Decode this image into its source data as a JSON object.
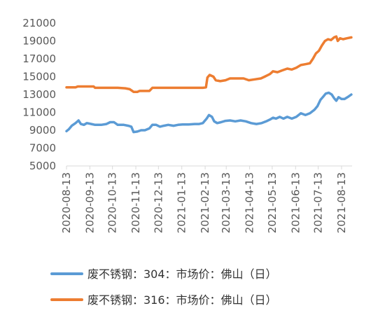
{
  "chart_data": {
    "type": "line",
    "title": "",
    "xlabel": "",
    "ylabel": "",
    "ylim": [
      5000,
      21000
    ],
    "yticks": [
      "21000",
      "19000",
      "17000",
      "15000",
      "13000",
      "11000",
      "9000",
      "7000",
      "5000"
    ],
    "x_tick_labels": [
      "2020-08-13",
      "2020-09-13",
      "2020-10-13",
      "2020-11-13",
      "2020-12-13",
      "2021-01-13",
      "2021-02-13",
      "2021-03-13",
      "2021-04-13",
      "2021-05-13",
      "2021-06-13",
      "2021-07-13",
      "2021-08-13"
    ],
    "grid": false,
    "legend": "bottom",
    "series": [
      {
        "name": "废不锈钢：304：市场价：佛山（日）",
        "color": "#5b9bd5",
        "points": [
          [
            "2020-08-13",
            8900
          ],
          [
            "2020-08-16",
            9100
          ],
          [
            "2020-08-20",
            9500
          ],
          [
            "2020-08-25",
            9800
          ],
          [
            "2020-08-29",
            10100
          ],
          [
            "2020-09-01",
            9700
          ],
          [
            "2020-09-05",
            9600
          ],
          [
            "2020-09-09",
            9800
          ],
          [
            "2020-09-15",
            9700
          ],
          [
            "2020-09-20",
            9600
          ],
          [
            "2020-09-28",
            9600
          ],
          [
            "2020-10-05",
            9700
          ],
          [
            "2020-10-10",
            9900
          ],
          [
            "2020-10-15",
            9900
          ],
          [
            "2020-10-20",
            9600
          ],
          [
            "2020-10-28",
            9600
          ],
          [
            "2020-11-03",
            9500
          ],
          [
            "2020-11-07",
            9400
          ],
          [
            "2020-11-10",
            8800
          ],
          [
            "2020-11-15",
            8850
          ],
          [
            "2020-11-20",
            9000
          ],
          [
            "2020-11-25",
            9000
          ],
          [
            "2020-12-01",
            9200
          ],
          [
            "2020-12-05",
            9600
          ],
          [
            "2020-12-10",
            9600
          ],
          [
            "2020-12-15",
            9400
          ],
          [
            "2020-12-20",
            9500
          ],
          [
            "2020-12-26",
            9600
          ],
          [
            "2021-01-02",
            9500
          ],
          [
            "2021-01-08",
            9600
          ],
          [
            "2021-01-14",
            9650
          ],
          [
            "2021-01-22",
            9650
          ],
          [
            "2021-01-30",
            9700
          ],
          [
            "2021-02-05",
            9700
          ],
          [
            "2021-02-10",
            9800
          ],
          [
            "2021-02-15",
            10300
          ],
          [
            "2021-02-18",
            10700
          ],
          [
            "2021-02-22",
            10500
          ],
          [
            "2021-02-25",
            10000
          ],
          [
            "2021-03-01",
            9800
          ],
          [
            "2021-03-06",
            9900
          ],
          [
            "2021-03-12",
            10050
          ],
          [
            "2021-03-18",
            10100
          ],
          [
            "2021-03-25",
            10000
          ],
          [
            "2021-04-01",
            10100
          ],
          [
            "2021-04-08",
            10000
          ],
          [
            "2021-04-15",
            9800
          ],
          [
            "2021-04-22",
            9700
          ],
          [
            "2021-04-29",
            9800
          ],
          [
            "2021-05-05",
            10000
          ],
          [
            "2021-05-10",
            10200
          ],
          [
            "2021-05-14",
            10400
          ],
          [
            "2021-05-18",
            10300
          ],
          [
            "2021-05-23",
            10500
          ],
          [
            "2021-05-28",
            10300
          ],
          [
            "2021-06-02",
            10500
          ],
          [
            "2021-06-08",
            10300
          ],
          [
            "2021-06-14",
            10500
          ],
          [
            "2021-06-20",
            10900
          ],
          [
            "2021-06-26",
            10700
          ],
          [
            "2021-07-02",
            10900
          ],
          [
            "2021-07-08",
            11300
          ],
          [
            "2021-07-12",
            11700
          ],
          [
            "2021-07-16",
            12400
          ],
          [
            "2021-07-20",
            12800
          ],
          [
            "2021-07-23",
            13100
          ],
          [
            "2021-07-27",
            13200
          ],
          [
            "2021-07-31",
            13000
          ],
          [
            "2021-08-03",
            12600
          ],
          [
            "2021-08-06",
            12300
          ],
          [
            "2021-08-09",
            12700
          ],
          [
            "2021-08-13",
            12500
          ],
          [
            "2021-08-17",
            12500
          ],
          [
            "2021-08-21",
            12700
          ],
          [
            "2021-08-26",
            13000
          ]
        ]
      },
      {
        "name": "废不锈钢：316：市场价：佛山（日）",
        "color": "#ed7d31",
        "points": [
          [
            "2020-08-13",
            13800
          ],
          [
            "2020-08-25",
            13800
          ],
          [
            "2020-08-28",
            13900
          ],
          [
            "2020-09-10",
            13900
          ],
          [
            "2020-09-18",
            13900
          ],
          [
            "2020-09-20",
            13750
          ],
          [
            "2020-10-05",
            13750
          ],
          [
            "2020-10-20",
            13750
          ],
          [
            "2020-10-30",
            13700
          ],
          [
            "2020-11-05",
            13600
          ],
          [
            "2020-11-10",
            13300
          ],
          [
            "2020-11-15",
            13300
          ],
          [
            "2020-11-18",
            13400
          ],
          [
            "2020-11-25",
            13400
          ],
          [
            "2020-12-01",
            13400
          ],
          [
            "2020-12-05",
            13750
          ],
          [
            "2020-12-20",
            13750
          ],
          [
            "2021-01-10",
            13750
          ],
          [
            "2021-01-30",
            13750
          ],
          [
            "2021-02-10",
            13750
          ],
          [
            "2021-02-14",
            13800
          ],
          [
            "2021-02-16",
            14900
          ],
          [
            "2021-02-19",
            15200
          ],
          [
            "2021-02-24",
            15000
          ],
          [
            "2021-02-27",
            14600
          ],
          [
            "2021-03-05",
            14500
          ],
          [
            "2021-03-12",
            14600
          ],
          [
            "2021-03-18",
            14800
          ],
          [
            "2021-03-28",
            14800
          ],
          [
            "2021-04-05",
            14800
          ],
          [
            "2021-04-12",
            14600
          ],
          [
            "2021-04-20",
            14700
          ],
          [
            "2021-04-28",
            14800
          ],
          [
            "2021-05-03",
            15000
          ],
          [
            "2021-05-10",
            15300
          ],
          [
            "2021-05-14",
            15600
          ],
          [
            "2021-05-20",
            15500
          ],
          [
            "2021-05-26",
            15700
          ],
          [
            "2021-06-02",
            15900
          ],
          [
            "2021-06-08",
            15800
          ],
          [
            "2021-06-14",
            16000
          ],
          [
            "2021-06-20",
            16300
          ],
          [
            "2021-06-26",
            16400
          ],
          [
            "2021-07-02",
            16500
          ],
          [
            "2021-07-06",
            17000
          ],
          [
            "2021-07-10",
            17600
          ],
          [
            "2021-07-14",
            17900
          ],
          [
            "2021-07-18",
            18500
          ],
          [
            "2021-07-22",
            19000
          ],
          [
            "2021-07-26",
            19200
          ],
          [
            "2021-07-30",
            19100
          ],
          [
            "2021-08-03",
            19400
          ],
          [
            "2021-08-06",
            19500
          ],
          [
            "2021-08-08",
            19000
          ],
          [
            "2021-08-11",
            19300
          ],
          [
            "2021-08-15",
            19200
          ],
          [
            "2021-08-20",
            19300
          ],
          [
            "2021-08-26",
            19400
          ]
        ]
      }
    ]
  }
}
